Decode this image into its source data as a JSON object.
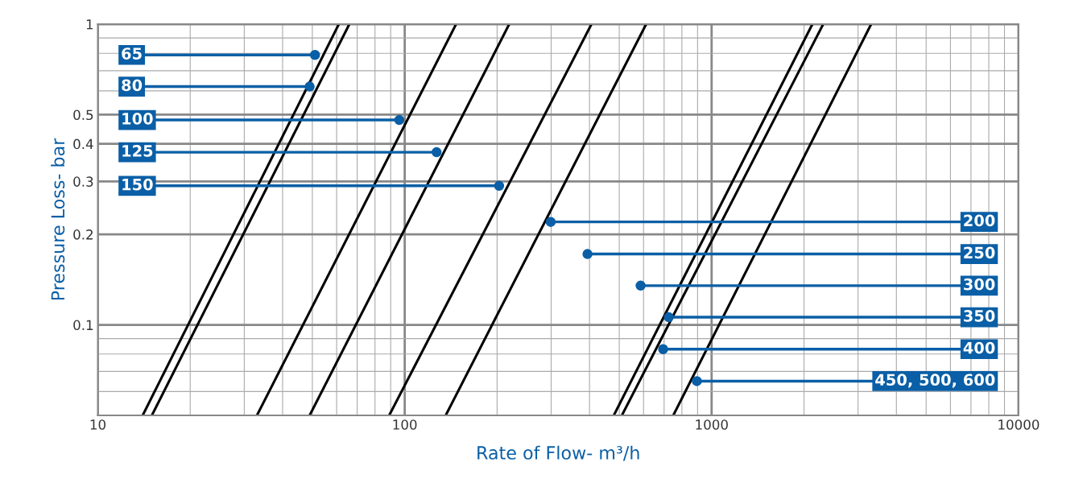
{
  "chart_data": {
    "type": "line",
    "xlabel": "Rate of Flow- m³/h",
    "ylabel": "Pressure Loss- bar",
    "log": "xy",
    "grid": true,
    "marker": "none",
    "line_style": "solid",
    "xlim": [
      10,
      10000
    ],
    "xticks": [
      10,
      100,
      1000,
      10000
    ],
    "ylim": [
      0.05,
      1
    ],
    "yticks": [
      0.1,
      0.2,
      0.3,
      0.4,
      0.5,
      1
    ],
    "series": [
      {
        "color": "#000000",
        "x": [
          14,
          61
        ],
        "values": [
          0.05,
          1
        ]
      },
      {
        "color": "#000000",
        "x": [
          15,
          66
        ],
        "values": [
          0.05,
          1
        ]
      },
      {
        "color": "#000000",
        "x": [
          33,
          147
        ],
        "values": [
          0.05,
          1
        ]
      },
      {
        "color": "#000000",
        "x": [
          49,
          219
        ],
        "values": [
          0.05,
          1
        ]
      },
      {
        "color": "#000000",
        "x": [
          89,
          406
        ],
        "values": [
          0.05,
          1
        ]
      },
      {
        "color": "#000000",
        "x": [
          136,
          612
        ],
        "values": [
          0.05,
          1
        ]
      },
      {
        "color": "#000000",
        "x": [
          480,
          2130
        ],
        "values": [
          0.05,
          1
        ]
      },
      {
        "color": "#000000",
        "x": [
          510,
          2310
        ],
        "values": [
          0.05,
          1
        ]
      },
      {
        "color": "#000000",
        "x": [
          750,
          3310
        ],
        "values": [
          0.05,
          1
        ]
      }
    ],
    "annotations": [
      {
        "text": "65",
        "x": 51,
        "y": 0.79
      },
      {
        "text": "80",
        "x": 49,
        "y": 0.62
      },
      {
        "text": "100",
        "x": 96,
        "y": 0.48
      },
      {
        "text": "125",
        "x": 127,
        "y": 0.375
      },
      {
        "text": "150",
        "x": 203,
        "y": 0.29
      },
      {
        "text": "200",
        "x": 299,
        "y": 0.22
      },
      {
        "text": "250",
        "x": 394,
        "y": 0.172
      },
      {
        "text": "300",
        "x": 587,
        "y": 0.135
      },
      {
        "text": "350",
        "x": 725,
        "y": 0.106
      },
      {
        "text": "400",
        "x": 695,
        "y": 0.083
      },
      {
        "text": "450, 500, 600",
        "x": 895,
        "y": 0.065
      }
    ]
  }
}
